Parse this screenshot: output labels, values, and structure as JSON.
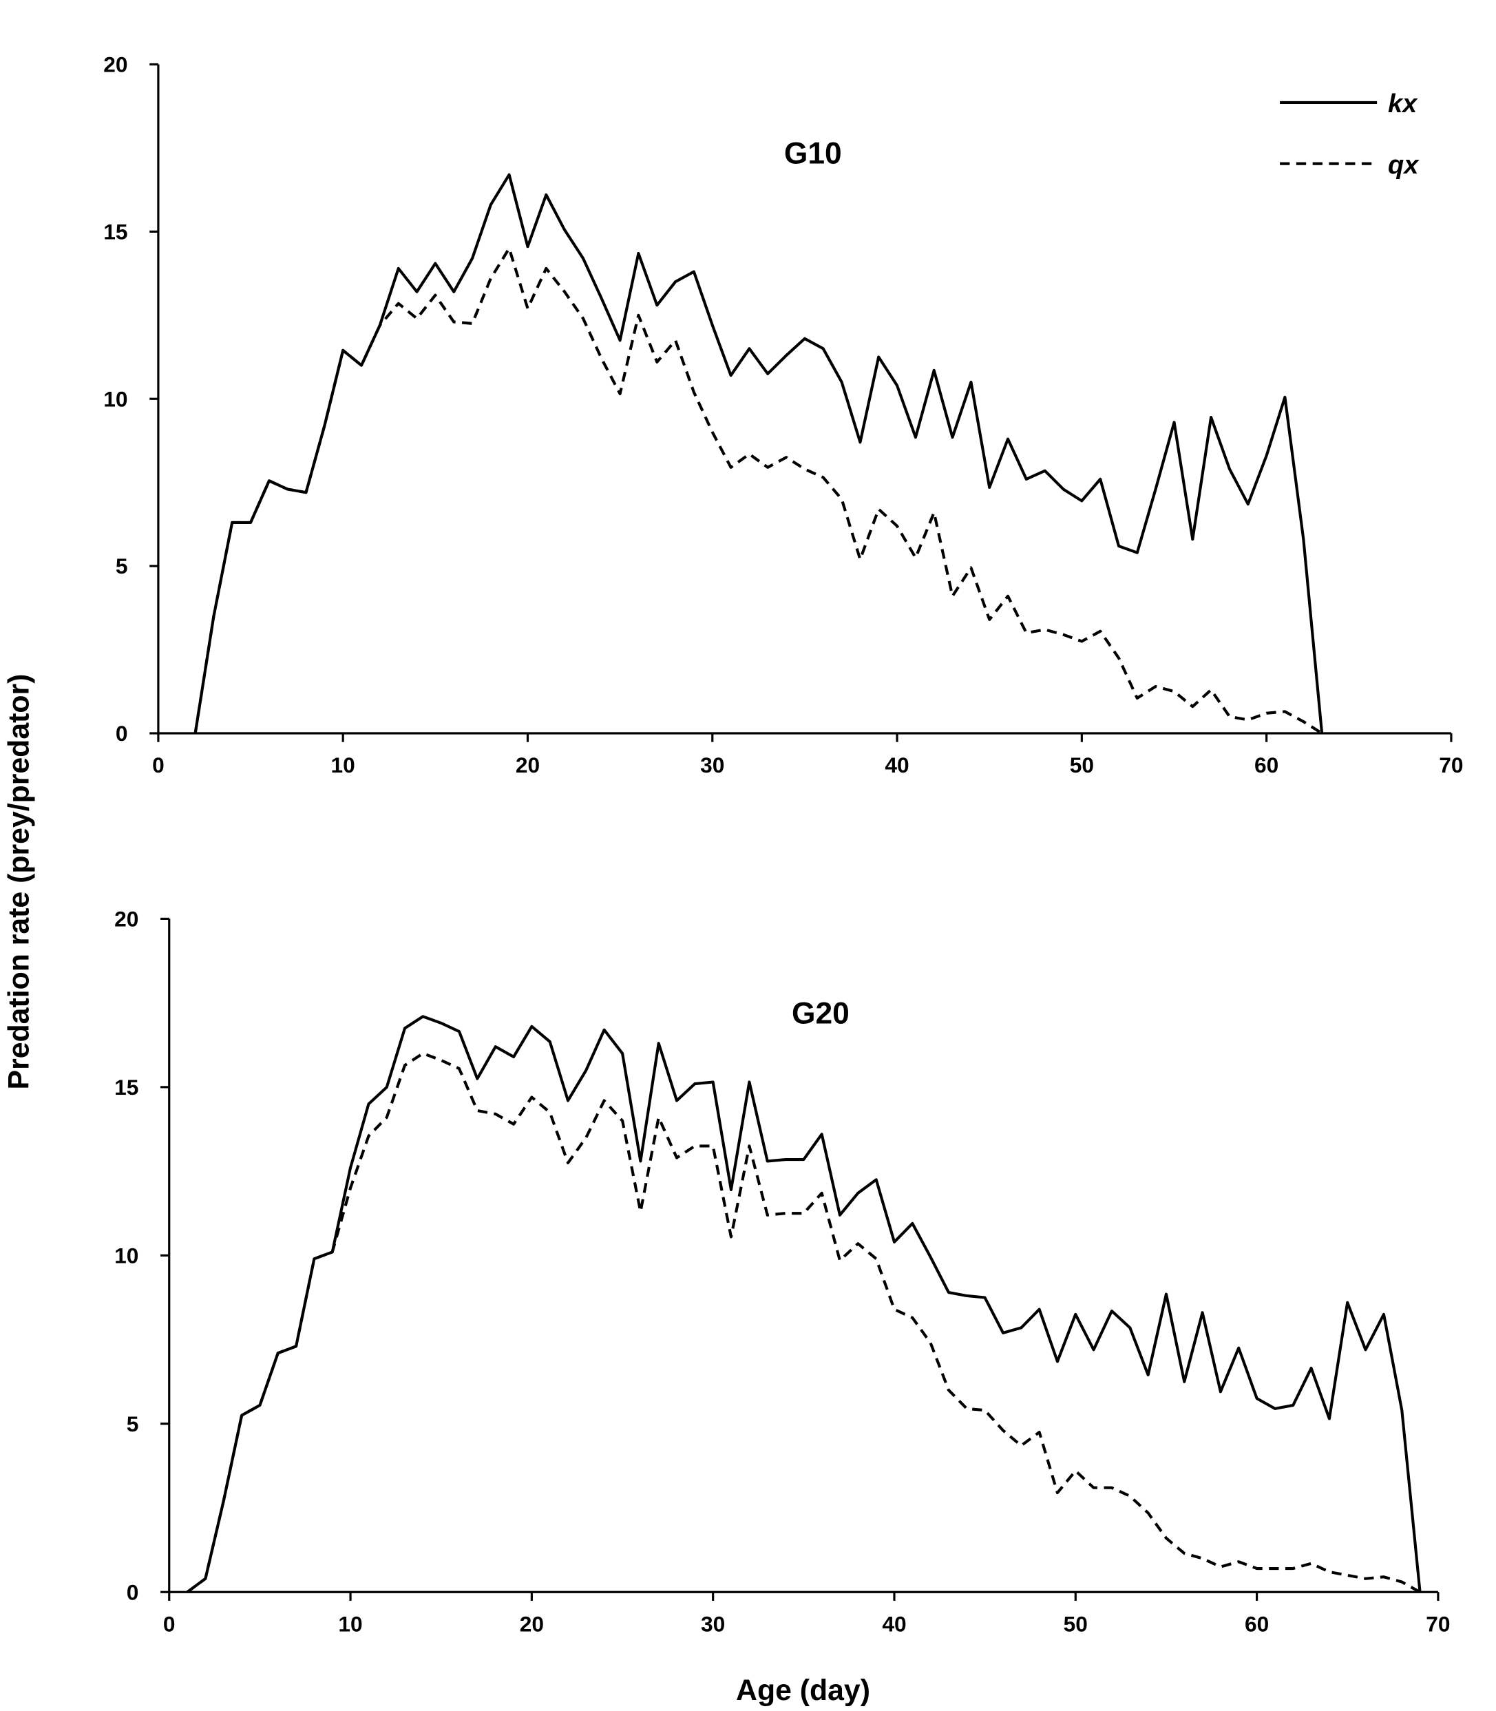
{
  "chart_data": [
    {
      "type": "line",
      "title": "G10",
      "xlim": [
        0,
        70
      ],
      "ylim": [
        0,
        20
      ],
      "xticks": [
        0,
        10,
        20,
        30,
        40,
        50,
        60,
        70
      ],
      "yticks": [
        0,
        5,
        10,
        15,
        20
      ],
      "series": [
        {
          "name": "kx",
          "style": "solid",
          "x": [
            2,
            3,
            4,
            5,
            6,
            7,
            8,
            9,
            10,
            11,
            12,
            13,
            14,
            15,
            16,
            17,
            18,
            19,
            20,
            21,
            22,
            23,
            24,
            25,
            26,
            27,
            28,
            29,
            30,
            31,
            32,
            33,
            34,
            35,
            36,
            37,
            38,
            39,
            40,
            41,
            42,
            43,
            44,
            45,
            46,
            47,
            48,
            49,
            50,
            51,
            52,
            53,
            54,
            55,
            56,
            57,
            58,
            59,
            60,
            61,
            62,
            63
          ],
          "values": [
            0,
            3.5,
            6.3,
            6.3,
            7.55,
            7.3,
            7.2,
            9.2,
            11.45,
            11.0,
            12.2,
            13.9,
            13.2,
            14.05,
            13.2,
            14.2,
            15.8,
            16.7,
            14.55,
            16.1,
            15.05,
            14.2,
            13.0,
            11.75,
            14.35,
            12.8,
            13.5,
            13.8,
            12.2,
            10.7,
            11.5,
            10.75,
            11.3,
            11.8,
            11.5,
            10.5,
            8.7,
            11.25,
            10.4,
            8.85,
            10.85,
            8.85,
            10.5,
            7.35,
            8.8,
            7.6,
            7.85,
            7.3,
            6.95,
            7.6,
            5.6,
            5.4,
            7.3,
            9.3,
            5.8,
            9.45,
            7.9,
            6.85,
            8.3,
            10.05,
            5.8,
            0
          ]
        },
        {
          "name": "qx",
          "style": "dashed",
          "x": [
            2,
            3,
            4,
            5,
            6,
            7,
            8,
            9,
            10,
            11,
            12,
            13,
            14,
            15,
            16,
            17,
            18,
            19,
            20,
            21,
            22,
            23,
            24,
            25,
            26,
            27,
            28,
            29,
            30,
            31,
            32,
            33,
            34,
            35,
            36,
            37,
            38,
            39,
            40,
            41,
            42,
            43,
            44,
            45,
            46,
            47,
            48,
            49,
            50,
            51,
            52,
            53,
            54,
            55,
            56,
            57,
            58,
            59,
            60,
            61,
            62,
            63
          ],
          "values": [
            0,
            3.5,
            6.3,
            6.3,
            7.55,
            7.3,
            7.2,
            9.2,
            11.45,
            11.0,
            12.2,
            12.85,
            12.4,
            13.1,
            12.3,
            12.25,
            13.6,
            14.5,
            12.7,
            13.9,
            13.2,
            12.4,
            11.2,
            10.15,
            12.5,
            11.1,
            11.75,
            10.2,
            9.0,
            7.95,
            8.35,
            7.95,
            8.25,
            7.9,
            7.65,
            7.0,
            5.2,
            6.7,
            6.2,
            5.25,
            6.6,
            4.1,
            4.95,
            3.4,
            4.1,
            3.0,
            3.1,
            2.95,
            2.75,
            3.05,
            2.25,
            1.05,
            1.4,
            1.25,
            0.8,
            1.3,
            0.5,
            0.4,
            0.6,
            0.65,
            0.35,
            0
          ]
        }
      ],
      "legend": {
        "position": "top-right",
        "entries": [
          "kx",
          "qx"
        ]
      }
    },
    {
      "type": "line",
      "title": "G20",
      "xlim": [
        0,
        70
      ],
      "ylim": [
        0,
        20
      ],
      "xticks": [
        0,
        10,
        20,
        30,
        40,
        50,
        60,
        70
      ],
      "yticks": [
        0,
        5,
        10,
        15,
        20
      ],
      "series": [
        {
          "name": "kx",
          "style": "solid",
          "x": [
            1,
            2,
            3,
            4,
            5,
            6,
            7,
            8,
            9,
            10,
            11,
            12,
            13,
            14,
            15,
            16,
            17,
            18,
            19,
            20,
            21,
            22,
            23,
            24,
            25,
            26,
            27,
            28,
            29,
            30,
            31,
            32,
            33,
            34,
            35,
            36,
            37,
            38,
            39,
            40,
            41,
            42,
            43,
            44,
            45,
            46,
            47,
            48,
            49,
            50,
            51,
            52,
            53,
            54,
            55,
            56,
            57,
            58,
            59,
            60,
            61,
            62,
            63,
            64,
            65,
            66,
            67,
            68,
            69
          ],
          "values": [
            0,
            0.4,
            2.7,
            5.25,
            5.55,
            7.1,
            7.3,
            9.9,
            10.1,
            12.6,
            14.5,
            15.0,
            16.75,
            17.1,
            16.9,
            16.65,
            15.25,
            16.2,
            15.9,
            16.8,
            16.35,
            14.6,
            15.5,
            16.7,
            16.0,
            12.8,
            16.3,
            14.6,
            15.1,
            15.15,
            11.95,
            15.15,
            12.8,
            12.85,
            12.85,
            13.6,
            11.2,
            11.85,
            12.25,
            10.4,
            10.95,
            9.95,
            8.9,
            8.8,
            8.75,
            7.7,
            7.85,
            8.4,
            6.85,
            8.25,
            7.2,
            8.35,
            7.85,
            6.45,
            8.85,
            6.25,
            8.3,
            5.95,
            7.25,
            5.75,
            5.45,
            5.55,
            6.65,
            5.15,
            8.6,
            7.2,
            8.25,
            5.4,
            0
          ]
        },
        {
          "name": "qx",
          "style": "dashed",
          "x": [
            1,
            2,
            3,
            4,
            5,
            6,
            7,
            8,
            9,
            10,
            11,
            12,
            13,
            14,
            15,
            16,
            17,
            18,
            19,
            20,
            21,
            22,
            23,
            24,
            25,
            26,
            27,
            28,
            29,
            30,
            31,
            32,
            33,
            34,
            35,
            36,
            37,
            38,
            39,
            40,
            41,
            42,
            43,
            44,
            45,
            46,
            47,
            48,
            49,
            50,
            51,
            52,
            53,
            54,
            55,
            56,
            57,
            58,
            59,
            60,
            61,
            62,
            63,
            64,
            65,
            66,
            67,
            68,
            69
          ],
          "values": [
            0,
            0.4,
            2.7,
            5.25,
            5.55,
            7.1,
            7.3,
            9.9,
            10.1,
            12.0,
            13.55,
            14.1,
            15.65,
            16.0,
            15.8,
            15.55,
            14.3,
            14.2,
            13.9,
            14.7,
            14.25,
            12.75,
            13.5,
            14.6,
            14.0,
            11.3,
            14.1,
            12.9,
            13.25,
            13.25,
            10.55,
            13.25,
            11.2,
            11.25,
            11.25,
            11.85,
            9.85,
            10.35,
            9.9,
            8.4,
            8.15,
            7.4,
            6.0,
            5.45,
            5.4,
            4.8,
            4.35,
            4.75,
            2.95,
            3.6,
            3.1,
            3.1,
            2.85,
            2.35,
            1.6,
            1.15,
            1.0,
            0.75,
            0.9,
            0.7,
            0.7,
            0.7,
            0.85,
            0.6,
            0.5,
            0.4,
            0.45,
            0.3,
            0
          ]
        }
      ]
    }
  ],
  "ylabel": "Predation rate (prey/predator)",
  "xlabel": "Age (day)"
}
